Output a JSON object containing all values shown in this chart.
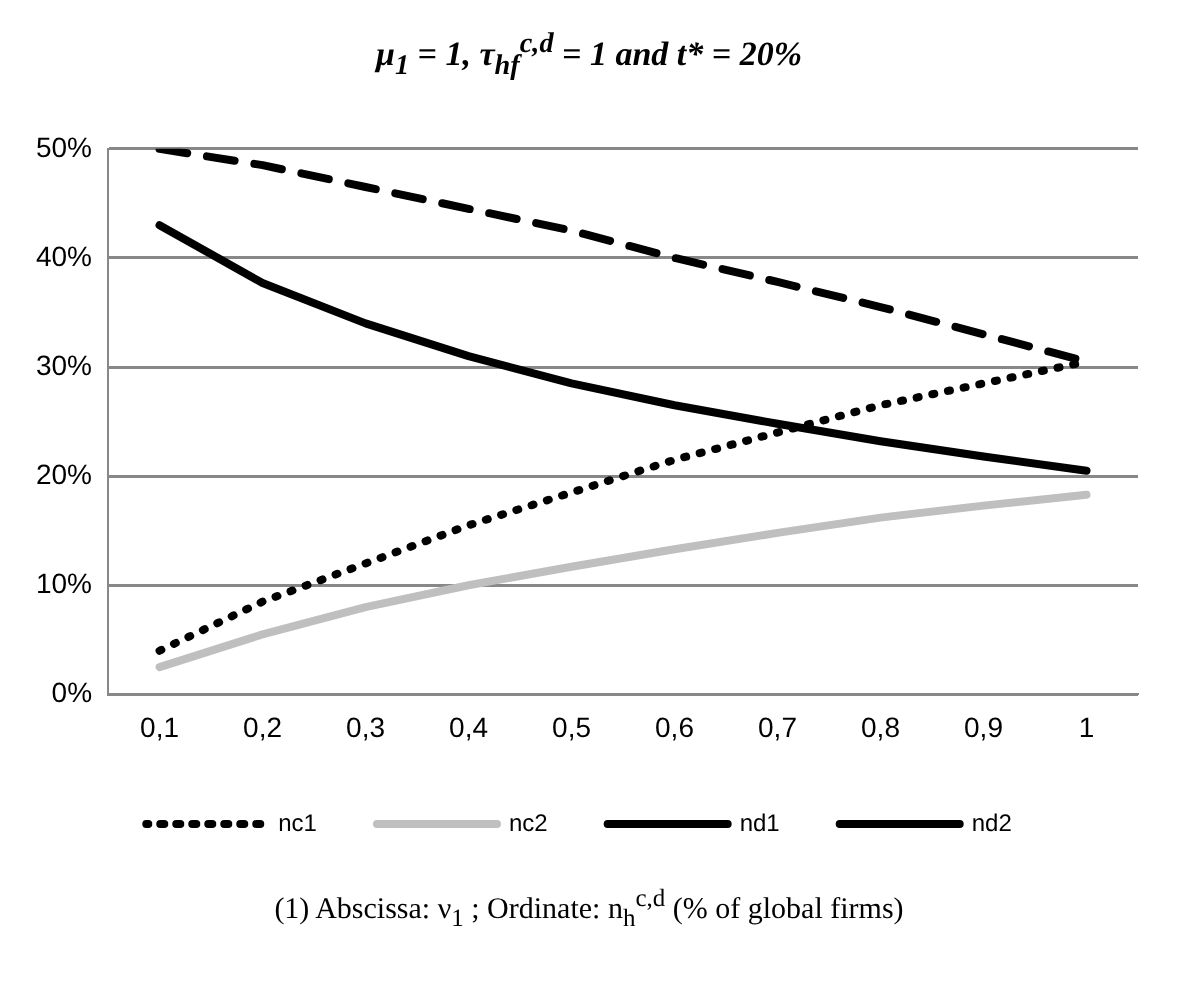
{
  "chart_data": {
    "type": "line",
    "title": "μ$_{1}$ = 1, τ$_{hf}$$^{c,d}$ = 1 and t* = 20%",
    "categories": [
      "0,1",
      "0,2",
      "0,3",
      "0,4",
      "0,5",
      "0,6",
      "0,7",
      "0,8",
      "0,9",
      "1"
    ],
    "series": [
      {
        "name": "nc1",
        "color": "#000000",
        "line_style": "dotted",
        "values": [
          4,
          8.5,
          12,
          15.5,
          18.5,
          21.5,
          24,
          26.5,
          28.5,
          30.5
        ]
      },
      {
        "name": "nc2",
        "color": "#bfbfbf",
        "line_style": "solid",
        "values": [
          2.5,
          5.5,
          8,
          10,
          11.7,
          13.3,
          14.8,
          16.2,
          17.3,
          18.3
        ]
      },
      {
        "name": "nd1",
        "color": "#000000",
        "line_style": "dashed",
        "values": [
          50,
          48.5,
          46.5,
          44.5,
          42.5,
          40,
          37.8,
          35.5,
          33,
          30.5
        ]
      },
      {
        "name": "nd2",
        "color": "#000000",
        "line_style": "solid",
        "values": [
          43,
          37.7,
          34,
          31,
          28.5,
          26.5,
          24.8,
          23.2,
          21.8,
          20.5
        ]
      }
    ],
    "ylim": [
      0,
      50
    ],
    "yticks": [
      {
        "value": 0,
        "label": "0%"
      },
      {
        "value": 10,
        "label": "10%"
      },
      {
        "value": 20,
        "label": "20%"
      },
      {
        "value": 30,
        "label": "30%"
      },
      {
        "value": 40,
        "label": "40%"
      },
      {
        "value": 50,
        "label": "50%"
      }
    ],
    "grid": "y",
    "legend": "bottom",
    "marker": "none",
    "annotations": [
      "(1) Abscissa: ν$_{1}$ ; Ordinate: n$_{h}$$^{c,d}$ (% of global firms)"
    ]
  }
}
